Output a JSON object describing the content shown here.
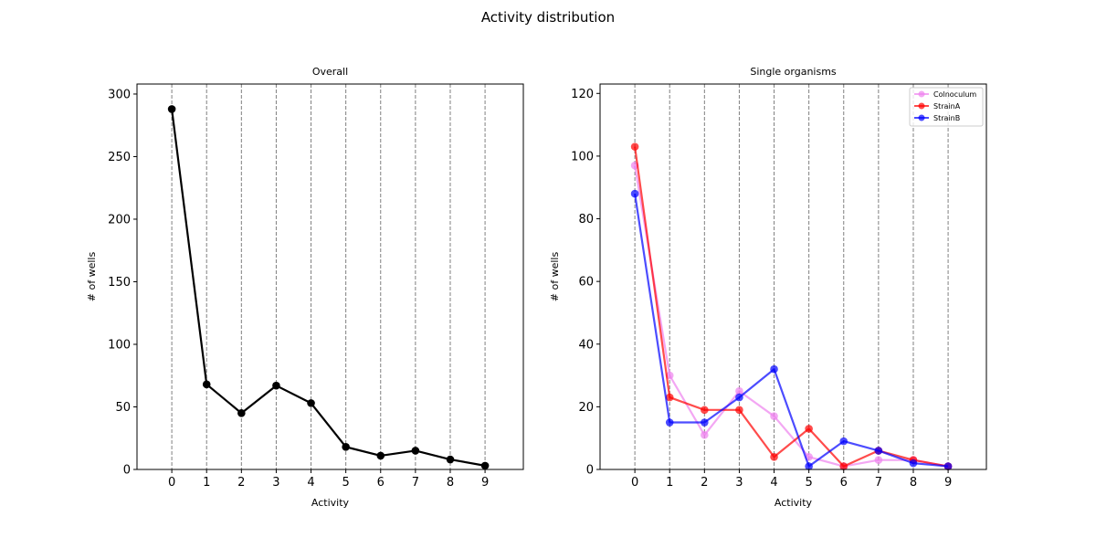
{
  "suptitle": "Activity distribution",
  "chart_data": [
    {
      "type": "line",
      "title": "Overall",
      "xlabel": "Activity",
      "ylabel": "# of wells",
      "xlim": [
        -1.0,
        10.1
      ],
      "ylim": [
        0,
        308
      ],
      "x": [
        0,
        1,
        2,
        3,
        4,
        5,
        6,
        7,
        8,
        9
      ],
      "xticks": [
        0,
        1,
        2,
        3,
        4,
        5,
        6,
        7,
        8,
        9
      ],
      "yticks": [
        0,
        50,
        100,
        150,
        200,
        250,
        300
      ],
      "vgrid": true,
      "legend": false,
      "series": [
        {
          "values": [
            288,
            68,
            45,
            67,
            53,
            18,
            11,
            15,
            8,
            3
          ],
          "color": "#000000"
        }
      ]
    },
    {
      "type": "line",
      "title": "Single organisms",
      "xlabel": "Activity",
      "ylabel": "# of wells",
      "xlim": [
        -1.0,
        10.1
      ],
      "ylim": [
        0,
        123
      ],
      "x": [
        0,
        1,
        2,
        3,
        4,
        5,
        6,
        7,
        8,
        9
      ],
      "xticks": [
        0,
        1,
        2,
        3,
        4,
        5,
        6,
        7,
        8,
        9
      ],
      "yticks": [
        0,
        20,
        40,
        60,
        80,
        100,
        120
      ],
      "vgrid": true,
      "legend": "top-right",
      "series": [
        {
          "name": "Colnoculum",
          "values": [
            97,
            30,
            11,
            25,
            17,
            4,
            1,
            3,
            3,
            1
          ],
          "color": "#ee82ee"
        },
        {
          "name": "StrainA",
          "values": [
            103,
            23,
            19,
            19,
            4,
            13,
            1,
            6,
            3,
            1
          ],
          "color": "#ff0000"
        },
        {
          "name": "StrainB",
          "values": [
            88,
            15,
            15,
            23,
            32,
            1,
            9,
            6,
            2,
            1
          ],
          "color": "#0000ff"
        }
      ]
    }
  ]
}
